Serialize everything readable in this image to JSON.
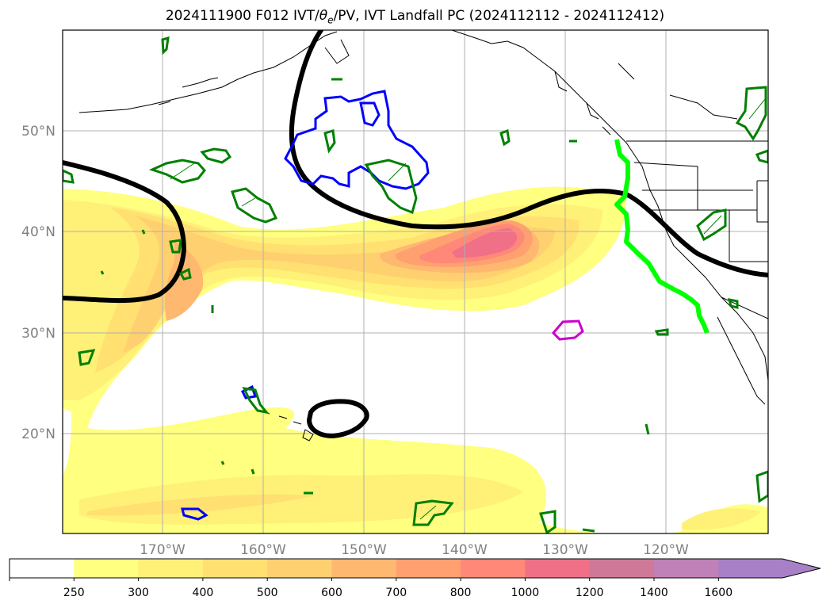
{
  "title": {
    "prefix": "2024111900 F012 IVT/",
    "theta": "θ",
    "theta_sub": "e",
    "suffix": "/PV, IVT Landfall PC (2024112112 - 2024112412)"
  },
  "lat_labels": [
    "50°N",
    "40°N",
    "30°N",
    "20°N"
  ],
  "lon_labels": [
    "170°W",
    "160°W",
    "150°W",
    "140°W",
    "130°W",
    "120°W"
  ],
  "colorbar": {
    "ticks": [
      "250",
      "300",
      "400",
      "500",
      "600",
      "700",
      "800",
      "1000",
      "1200",
      "1400",
      "1600"
    ],
    "colors": [
      "#ffff80",
      "#fff078",
      "#ffe070",
      "#ffd070",
      "#ffb870",
      "#ffa070",
      "#ff8878",
      "#f07088",
      "#d07898",
      "#c080b8",
      "#a880c8"
    ],
    "extend": "max"
  },
  "legend_colors": {
    "ivt_landfall": "#00ff00",
    "pv_contour": "#000000",
    "theta_e_positive": "#008000",
    "theta_e_negative": "#0000ff",
    "marker_ring": "#cc00cc"
  }
}
